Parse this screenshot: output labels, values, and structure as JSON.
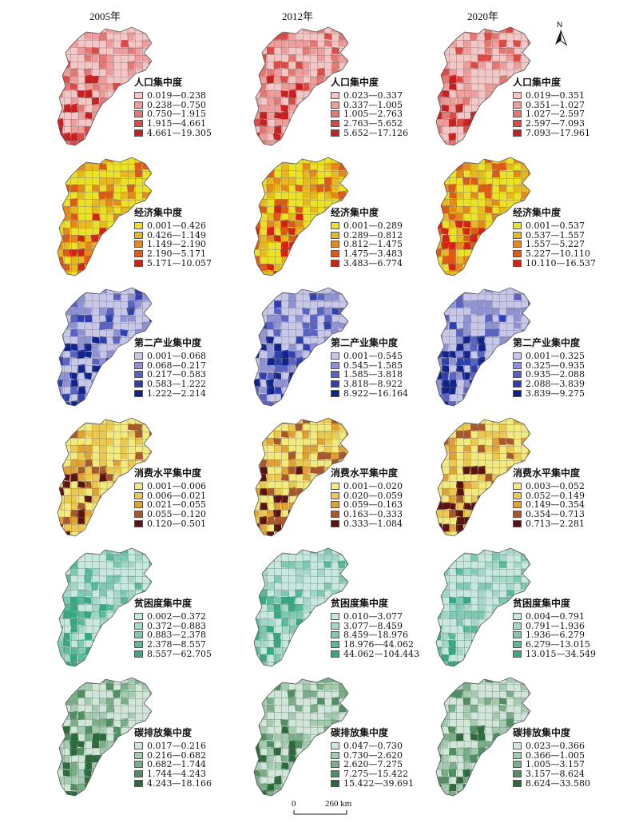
{
  "years": [
    "2005年",
    "2012年",
    "2020年"
  ],
  "north_label": "N",
  "scale": {
    "start": "0",
    "end": "260 km"
  },
  "indicators": [
    {
      "title": "人口集中度",
      "colors": [
        "#f4c6c6",
        "#ee9d9a",
        "#e67773",
        "#dc4a45",
        "#c8201e"
      ],
      "legends": [
        [
          "0.019—0.238",
          "0.238—0.750",
          "0.750—1.915",
          "1.915—4.661",
          "4.661—19.305"
        ],
        [
          "0.023—0.337",
          "0.337—1.005",
          "1.005—2.763",
          "2.763—5.652",
          "5.652—17.126"
        ],
        [
          "0.019—0.351",
          "0.351—1.027",
          "1.027—2.597",
          "2.597—7.093",
          "7.093—17.961"
        ]
      ]
    },
    {
      "title": "经济集中度",
      "colors": [
        "#ece225",
        "#e8b81f",
        "#e58a1a",
        "#e05a17",
        "#d81f14"
      ],
      "legends": [
        [
          "0.001—0.426",
          "0.426—1.149",
          "1.149—2.190",
          "2.190—5.171",
          "5.171—10.057"
        ],
        [
          "0.001—0.289",
          "0.289—0.812",
          "0.812—1.475",
          "1.475—3.483",
          "3.483—6.774"
        ],
        [
          "0.001—0.537",
          "0.537—1.557",
          "1.557—5.227",
          "5.227—10.110",
          "10.110—16.537"
        ]
      ]
    },
    {
      "title": "第二产业集中度",
      "colors": [
        "#c7c7ea",
        "#8f93d6",
        "#5a63c4",
        "#2e3fb0",
        "#10248c"
      ],
      "legends": [
        [
          "0.001—0.068",
          "0.068—0.217",
          "0.217—0.583",
          "0.583—1.222",
          "1.222—2.214"
        ],
        [
          "0.001—0.545",
          "0.545—1.585",
          "1.585—3.818",
          "3.818—8.922",
          "8.922—16.164"
        ],
        [
          "0.001—0.325",
          "0.325—0.935",
          "0.935—2.088",
          "2.088—3.839",
          "3.839—9.275"
        ]
      ]
    },
    {
      "title": "消费水平集中度",
      "colors": [
        "#f2ea7c",
        "#ecc94e",
        "#e0a235",
        "#a8582a",
        "#5c1212"
      ],
      "legends": [
        [
          "0.001—0.006",
          "0.006—0.021",
          "0.021—0.055",
          "0.055—0.120",
          "0.120—0.501"
        ],
        [
          "0.001—0.020",
          "0.020—0.059",
          "0.059—0.163",
          "0.163—0.333",
          "0.333—1.084"
        ],
        [
          "0.003—0.052",
          "0.052—0.149",
          "0.149—0.354",
          "0.354—0.713",
          "0.713—2.281"
        ]
      ]
    },
    {
      "title": "贫困度集中度",
      "colors": [
        "#c6e8de",
        "#a2d8c7",
        "#7ccab1",
        "#58ba9a",
        "#36a982"
      ],
      "legends": [
        [
          "0.002—0.372",
          "0.372—0.883",
          "0.883—2.378",
          "2.378—8.557",
          "8.557—62.705"
        ],
        [
          "0.010—3.077",
          "3.077—8.459",
          "8.459—18.976",
          "18.976—44.062",
          "44.062—104.443"
        ],
        [
          "0.004—0.791",
          "0.791—1.936",
          "1.936—6.279",
          "6.279—13.015",
          "13.015—34.549"
        ]
      ]
    },
    {
      "title": "碳排放集中度",
      "colors": [
        "#cfe6d8",
        "#a3cbaf",
        "#7aae89",
        "#4f8f62",
        "#2a6b3c"
      ],
      "legends": [
        [
          "0.017—0.216",
          "0.216—0.682",
          "0.682—1.744",
          "1.744—4.243",
          "4.243—18.166"
        ],
        [
          "0.047—0.730",
          "0.730—2.620",
          "2.620—7.275",
          "7.275—15.422",
          "15.422—39.691"
        ],
        [
          "0.023—0.366",
          "0.366—1.005",
          "1.005—3.157",
          "3.157—8.624",
          "8.624—33.580"
        ]
      ]
    }
  ]
}
